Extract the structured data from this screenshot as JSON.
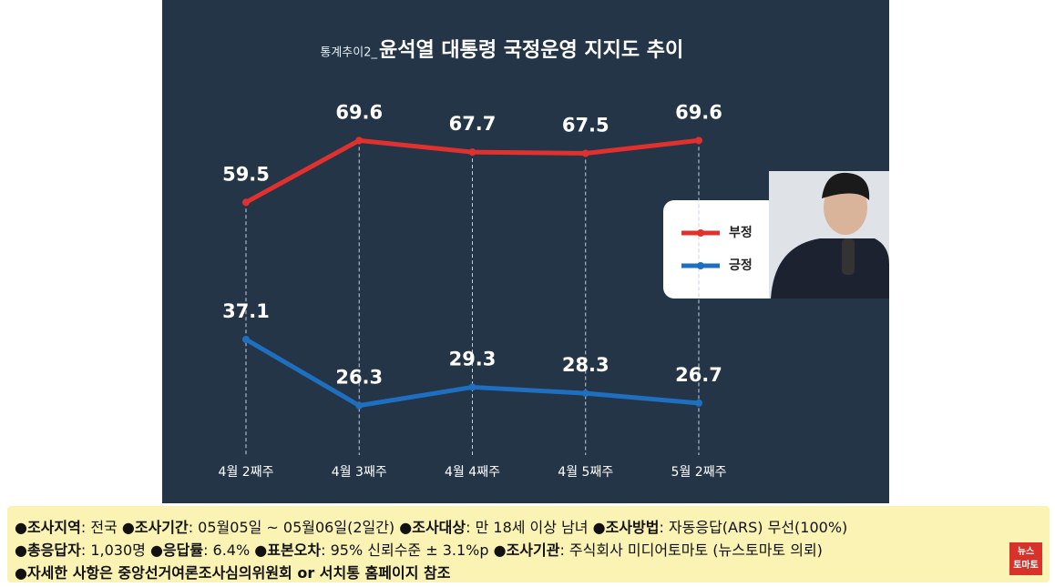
{
  "chart_data": {
    "type": "line",
    "kicker": "통계추이2_",
    "title": "윤석열 대통령 국정운영 지지도 추이",
    "categories": [
      "4월 2째주",
      "4월 3째주",
      "4월 4째주",
      "4월 5째주",
      "5월 2째주"
    ],
    "series": [
      {
        "name": "부정",
        "color": "#e0312f",
        "values": [
          59.5,
          69.6,
          67.7,
          67.5,
          69.6
        ]
      },
      {
        "name": "긍정",
        "color": "#1f6fc0",
        "values": [
          37.1,
          26.3,
          29.3,
          28.3,
          26.7
        ]
      }
    ],
    "ylim": [
      20,
      75
    ],
    "legend": "right"
  },
  "info": {
    "lines": [
      [
        {
          "key": "●조사지역",
          "value": ": 전국 "
        },
        {
          "key": "●조사기간",
          "value": ": 05월05일 ~ 05월06일(2일간) "
        },
        {
          "key": "●조사대상",
          "value": ": 만 18세 이상 남녀 "
        },
        {
          "key": "●조사방법",
          "value": ": 자동응답(ARS) 무선(100%)"
        }
      ],
      [
        {
          "key": "●총응답자",
          "value": ": 1,030명 "
        },
        {
          "key": "●응답률",
          "value": ": 6.4% "
        },
        {
          "key": "●표본오차",
          "value": ": 95% 신뢰수준 ± 3.1%p "
        },
        {
          "key": "●조사기관",
          "value": ": 주식회사 미디어토마토 (뉴스토마토 의뢰)"
        }
      ],
      [
        {
          "key": "●자세한 사항은 중앙선거여론조사심의위원회 or 서치통 홈페이지 참조",
          "value": ""
        }
      ]
    ],
    "logo": [
      "뉴스",
      "토마토"
    ]
  }
}
